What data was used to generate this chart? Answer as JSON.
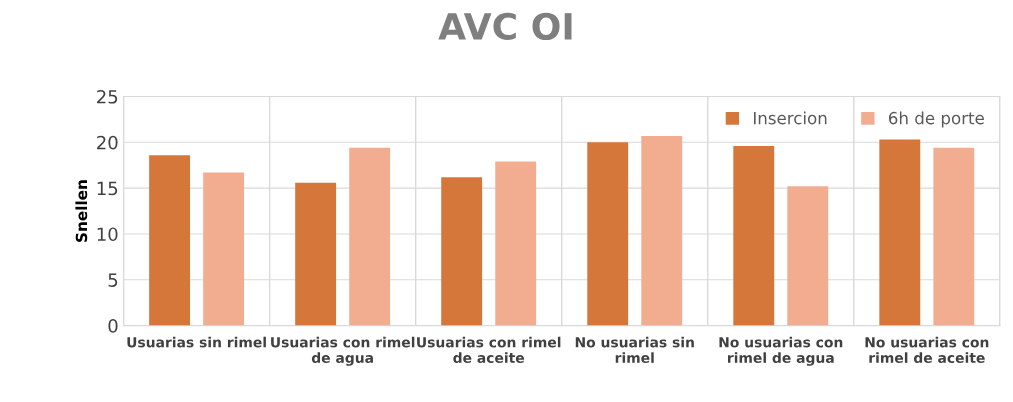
{
  "chart_data": {
    "type": "bar",
    "title": "AVC OI",
    "ylabel": "Snellen",
    "categories": [
      "Usuarias sin rimel",
      "Usuarias con rimel de agua",
      "Usuarias con rimel de aceite",
      "No usuarias sin rimel",
      "No usuarias con rimel de agua",
      "No usuarias con rimel de aceite"
    ],
    "series": [
      {
        "name": "Insercion",
        "color": "#d5773a",
        "values": [
          18.6,
          15.6,
          16.2,
          20.0,
          19.6,
          20.3
        ]
      },
      {
        "name": "6h de porte",
        "color": "#f2ad91",
        "values": [
          16.7,
          19.4,
          17.9,
          20.7,
          15.2,
          19.4
        ]
      }
    ],
    "ylim": [
      0,
      25
    ],
    "yticks": [
      0,
      5,
      10,
      15,
      20,
      25
    ],
    "grid": true,
    "legend": "top right"
  }
}
